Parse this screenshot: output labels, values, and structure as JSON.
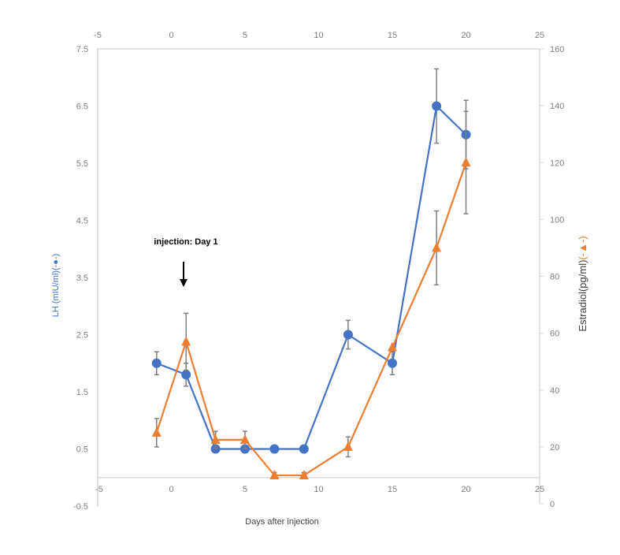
{
  "chart_data": {
    "type": "line",
    "xlabel": "Days after injection",
    "ylabel_left": "LH (mIU/ml)",
    "ylabel_left_marker": "(-●-)",
    "ylabel_right": "Estradiol(pg/ml)",
    "ylabel_right_marker": "(-▲-)",
    "annotation": "injection: Day 1",
    "annotation_x": 1,
    "xlim": [
      -5,
      25
    ],
    "xticks": [
      "-5",
      "0",
      "5",
      "10",
      "15",
      "20",
      "25"
    ],
    "ylim_left": [
      -0.5,
      7.5
    ],
    "yticks_left": [
      "-0.5",
      "0.5",
      "1.5",
      "2.5",
      "3.5",
      "4.5",
      "5.5",
      "6.5",
      "7.5"
    ],
    "ylim_right": [
      0,
      160
    ],
    "yticks_right": [
      "0",
      "20",
      "40",
      "60",
      "80",
      "100",
      "120",
      "140",
      "160"
    ],
    "grid": false,
    "series": [
      {
        "name": "LH",
        "axis": "left",
        "color": "#4472C4",
        "marker": "circle",
        "x": [
          -1,
          1,
          3,
          5,
          7,
          9,
          12,
          15,
          18,
          20
        ],
        "y": [
          2.0,
          1.8,
          0.5,
          0.5,
          0.5,
          0.5,
          2.5,
          2.0,
          6.5,
          6.0
        ],
        "err": [
          0.2,
          0.2,
          0,
          0,
          0,
          0,
          0.25,
          0.2,
          0.65,
          0.6
        ]
      },
      {
        "name": "Estradiol",
        "axis": "right",
        "color": "#ED7D31",
        "marker": "triangle",
        "x": [
          -1,
          1,
          3,
          5,
          7,
          9,
          12,
          15,
          18,
          20
        ],
        "y": [
          25,
          57,
          22.5,
          22.5,
          10,
          10,
          20,
          55,
          90,
          120
        ],
        "err": [
          5,
          10,
          3,
          3,
          1,
          1,
          3.5,
          0,
          13,
          18
        ]
      }
    ]
  }
}
